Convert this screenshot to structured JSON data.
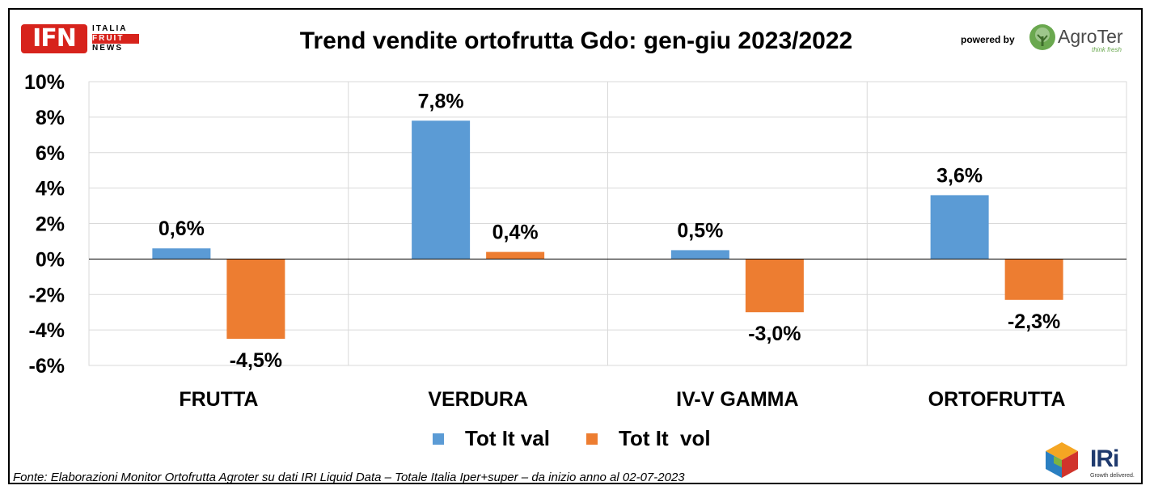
{
  "header": {
    "title": "Trend vendite ortofrutta Gdo: gen-giu 2023/2022",
    "ifn_logo": {
      "mark": "IFN",
      "lines": [
        "ITALIA",
        "FRUIT",
        "NEWS"
      ]
    },
    "powered_by": "powered by",
    "agroter_logo": {
      "name": "AgroTer",
      "tagline": "think fresh"
    }
  },
  "chart_data": {
    "type": "bar",
    "title": "Trend vendite ortofrutta Gdo: gen-giu 2023/2022",
    "xlabel": "",
    "ylabel": "",
    "categories": [
      "FRUTTA",
      "VERDURA",
      "IV-V GAMMA",
      "ORTOFRUTTA"
    ],
    "series": [
      {
        "name": "Tot It val",
        "values": [
          0.6,
          7.8,
          0.5,
          3.6
        ],
        "color": "#5b9bd5",
        "labels": [
          "0,6%",
          "7,8%",
          "0,5%",
          "3,6%"
        ]
      },
      {
        "name": "Tot It  vol",
        "values": [
          -4.5,
          0.4,
          -3.0,
          -2.3
        ],
        "color": "#ed7d31",
        "labels": [
          "-4,5%",
          "0,4%",
          "-3,0%",
          "-2,3%"
        ]
      }
    ],
    "ylim": [
      -6,
      10
    ],
    "yticks": [
      10,
      8,
      6,
      4,
      2,
      0,
      -2,
      -4,
      -6
    ],
    "ytick_labels": [
      "10%",
      "8%",
      "6%",
      "4%",
      "2%",
      "0%",
      "-2%",
      "-4%",
      "-6%"
    ],
    "grid": true,
    "legend_position": "bottom"
  },
  "footer": {
    "source": "Fonte: Elaborazioni Monitor Ortofrutta Agroter su dati IRI Liquid Data – Totale Italia Iper+super –  da inizio anno al 02-07-2023",
    "iri_logo": {
      "name": "IRi",
      "tagline": "Growth delivered."
    }
  }
}
